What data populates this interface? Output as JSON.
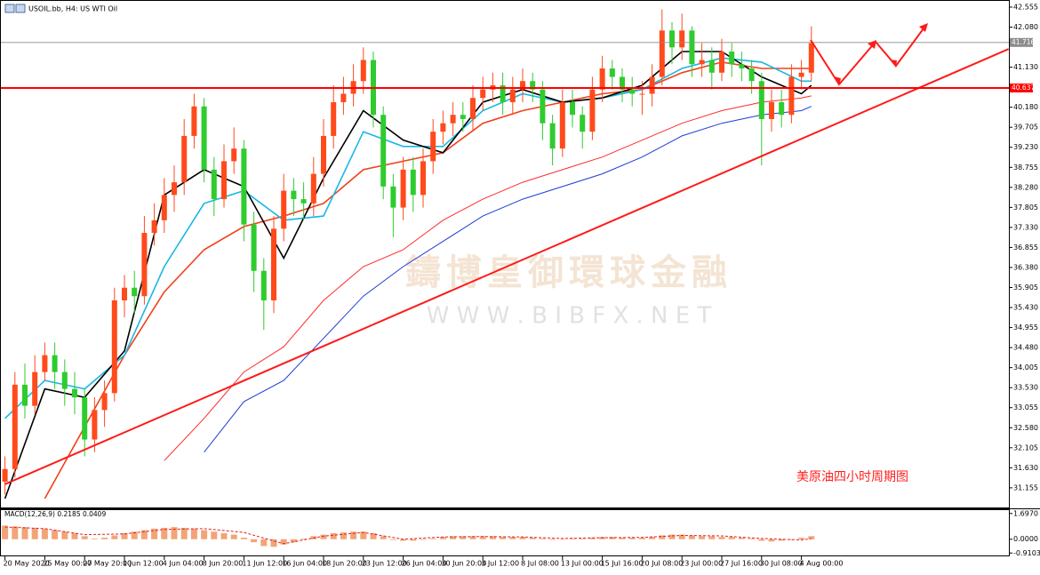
{
  "chart_data": [
    {
      "type": "candlestick",
      "title": "USOIL.bb, H4:  US WTI Oil",
      "annotation": "美原油四小时周期图",
      "watermark": "鑄博皇御環球金融",
      "watermark_url": "W W W . B I B F X . N E T",
      "categories": [
        "20 May 2020",
        null,
        null,
        null,
        "25 May 00:00",
        null,
        null,
        null,
        "27 May 20:00",
        null,
        null,
        null,
        "1 Jun 12:00",
        null,
        null,
        null,
        "4 Jun 04:00",
        null,
        null,
        null,
        "8 Jun 20:00",
        null,
        null,
        null,
        "11 Jun 12:00",
        null,
        null,
        null,
        "16 Jun 04:00",
        null,
        null,
        null,
        "18 Jun 20:00",
        null,
        null,
        null,
        "23 Jun 12:00",
        null,
        null,
        null,
        "26 Jun 04:00",
        null,
        null,
        null,
        "30 Jun 20:00",
        null,
        null,
        null,
        "3 Jul 12:00",
        null,
        null,
        null,
        "8 Jul 08:00",
        null,
        null,
        null,
        "13 Jul 00:00",
        null,
        null,
        null,
        "15 Jul 16:00",
        null,
        null,
        null,
        "20 Jul 08:00",
        null,
        null,
        null,
        "23 Jul 00:00",
        null,
        null,
        null,
        "27 Jul 16:00",
        null,
        null,
        null,
        "30 Jul 08:00",
        null,
        null,
        null,
        "4 Aug 00:00",
        null
      ],
      "open": [
        31.3,
        31.6,
        33.6,
        33.1,
        33.9,
        34.3,
        33.9,
        33.5,
        33.3,
        32.3,
        33.0,
        33.4,
        35.6,
        35.9,
        35.7,
        37.2,
        37.5,
        38.1,
        38.4,
        39.5,
        40.2,
        38.7,
        38.0,
        38.9,
        39.2,
        37.4,
        36.3,
        35.6,
        37.3,
        38.2,
        38.0,
        37.9,
        38.6,
        39.5,
        40.3,
        40.5,
        40.8,
        41.3,
        40.0,
        38.3,
        37.8,
        38.7,
        38.1,
        38.9,
        39.6,
        39.8,
        40.0,
        39.9,
        40.4,
        40.6,
        40.7,
        40.3,
        40.6,
        40.8,
        40.6,
        39.8,
        39.2,
        40.3,
        40.0,
        39.6,
        40.6,
        41.1,
        40.9,
        40.6,
        40.5,
        40.5,
        40.9,
        42.0,
        41.6,
        42.0,
        41.2,
        41.3,
        41.0,
        41.5,
        41.2,
        41.1,
        40.8,
        39.9,
        40.3,
        40.0,
        40.9,
        41.0
      ],
      "high": [
        31.9,
        33.9,
        34.1,
        34.3,
        34.6,
        34.6,
        34.2,
        33.9,
        33.5,
        33.3,
        33.7,
        35.9,
        36.2,
        36.3,
        37.6,
        37.9,
        38.5,
        38.8,
        39.9,
        40.5,
        40.4,
        39.0,
        39.3,
        39.7,
        39.4,
        37.7,
        36.6,
        37.6,
        38.6,
        38.5,
        38.4,
        39.0,
        39.9,
        40.7,
        40.9,
        41.2,
        41.6,
        41.5,
        40.2,
        38.6,
        39.0,
        39.0,
        39.2,
        39.9,
        40.1,
        40.3,
        40.3,
        40.7,
        40.9,
        41.0,
        41.0,
        40.9,
        41.1,
        41.0,
        40.8,
        40.0,
        40.6,
        40.6,
        40.2,
        40.9,
        41.4,
        41.3,
        41.1,
        40.9,
        40.8,
        41.2,
        42.5,
        42.2,
        42.4,
        42.1,
        41.7,
        41.6,
        41.8,
        41.7,
        41.5,
        41.3,
        41.0,
        40.6,
        40.6,
        41.2,
        41.3,
        42.1
      ],
      "low": [
        31.0,
        31.4,
        32.8,
        32.9,
        33.7,
        33.5,
        33.1,
        32.9,
        31.9,
        32.0,
        32.6,
        33.2,
        35.2,
        35.3,
        35.5,
        36.9,
        37.2,
        37.7,
        38.1,
        39.2,
        38.4,
        37.6,
        37.8,
        38.6,
        37.0,
        35.8,
        34.9,
        35.3,
        37.0,
        37.6,
        37.5,
        37.6,
        38.3,
        39.2,
        40.0,
        40.2,
        40.5,
        39.7,
        38.0,
        37.1,
        37.5,
        37.7,
        37.8,
        38.6,
        39.3,
        39.5,
        39.6,
        39.6,
        40.1,
        40.3,
        40.0,
        40.0,
        40.3,
        40.3,
        39.4,
        38.8,
        39.0,
        39.7,
        39.2,
        39.4,
        40.3,
        40.6,
        40.3,
        40.2,
        40.0,
        40.2,
        40.7,
        41.2,
        41.3,
        40.9,
        40.9,
        40.6,
        40.8,
        40.9,
        40.8,
        40.5,
        38.8,
        39.6,
        39.7,
        39.8,
        40.6,
        40.8
      ],
      "close": [
        31.6,
        33.6,
        33.1,
        33.9,
        34.3,
        33.9,
        33.5,
        33.3,
        32.3,
        33.0,
        33.4,
        35.6,
        35.9,
        35.7,
        37.2,
        37.5,
        38.1,
        38.4,
        39.5,
        40.2,
        38.7,
        38.0,
        38.9,
        39.2,
        37.4,
        36.3,
        35.6,
        37.3,
        38.2,
        38.0,
        37.9,
        38.6,
        39.5,
        40.3,
        40.5,
        40.8,
        41.3,
        40.0,
        38.3,
        37.8,
        38.7,
        38.1,
        38.9,
        39.6,
        39.8,
        40.0,
        39.9,
        40.4,
        40.6,
        40.7,
        40.3,
        40.6,
        40.8,
        40.6,
        39.8,
        39.2,
        40.3,
        40.0,
        39.6,
        40.6,
        41.1,
        40.9,
        40.6,
        40.5,
        40.5,
        40.9,
        42.0,
        41.6,
        42.0,
        41.2,
        41.3,
        41.0,
        41.5,
        41.2,
        41.1,
        40.8,
        39.9,
        40.3,
        40.0,
        40.9,
        41.0,
        41.7
      ],
      "up_color": "#ff4a1c",
      "down_color": "#2ecc2e",
      "line_x": [
        0,
        4,
        8,
        12,
        16,
        20,
        24,
        28,
        32,
        36,
        40,
        44,
        48,
        52,
        56,
        60,
        64,
        68,
        72,
        76,
        80,
        81
      ],
      "lines": [
        {
          "color": "#1f3bd6",
          "width": 1,
          "values": [
            null,
            null,
            null,
            null,
            null,
            32.0,
            33.2,
            33.7,
            34.7,
            35.7,
            36.4,
            37.0,
            37.6,
            38.0,
            38.3,
            38.6,
            39.0,
            39.5,
            39.8,
            40.0,
            40.1,
            40.2
          ]
        },
        {
          "color": "#ff2a2a",
          "width": 1,
          "values": [
            null,
            null,
            null,
            null,
            31.8,
            32.8,
            33.9,
            34.5,
            35.6,
            36.4,
            36.8,
            37.5,
            38.0,
            38.4,
            38.7,
            39.0,
            39.4,
            39.8,
            40.1,
            40.3,
            40.4,
            40.45
          ]
        },
        {
          "color": "#f0401a",
          "width": 1.6,
          "values": [
            null,
            30.9,
            32.6,
            34.3,
            35.8,
            36.8,
            37.35,
            37.6,
            37.9,
            38.7,
            38.9,
            39.1,
            39.8,
            40.1,
            40.3,
            40.5,
            40.6,
            41.0,
            41.25,
            41.1,
            41.1,
            41.1
          ]
        },
        {
          "color": "#19b7e6",
          "width": 1.6,
          "values": [
            32.8,
            33.7,
            33.5,
            34.3,
            36.4,
            37.9,
            38.2,
            37.5,
            37.6,
            39.6,
            39.25,
            39.25,
            40.1,
            40.5,
            40.3,
            40.4,
            40.6,
            41.1,
            41.35,
            41.25,
            40.8,
            40.8
          ]
        },
        {
          "color": "#000000",
          "width": 1.6,
          "values": [
            30.9,
            33.5,
            33.3,
            34.4,
            38.1,
            38.7,
            38.3,
            36.6,
            38.5,
            40.1,
            39.4,
            39.1,
            40.3,
            40.6,
            40.3,
            40.4,
            40.7,
            41.5,
            41.5,
            40.9,
            40.5,
            40.7
          ]
        }
      ],
      "trendline": {
        "color": "#ff1a1a",
        "x": [
          0,
          100.8
        ],
        "values": [
          31.24,
          41.56
        ]
      },
      "price_lines": [
        {
          "value": 41.716,
          "color": "#8c8c8c"
        },
        {
          "value": 40.637,
          "color": "#ff0000"
        }
      ],
      "ylim": [
        30.71,
        42.66
      ],
      "yticks": [
        42.555,
        {
          "value": 42.08,
          "label": "42.080"
        },
        {
          "value": 41.13,
          "label": "41.130"
        },
        {
          "value": 40.18,
          "label": "40.180"
        },
        39.705,
        {
          "value": 39.23,
          "label": "39.230"
        },
        38.755,
        {
          "value": 38.28,
          "label": "38.280"
        },
        37.805,
        {
          "value": 37.33,
          "label": "37.330"
        },
        36.855,
        {
          "value": 36.38,
          "label": "36.380"
        },
        35.905,
        {
          "value": 35.43,
          "label": "35.430"
        },
        34.955,
        {
          "value": 34.48,
          "label": "34.480"
        },
        34.005,
        {
          "value": 33.53,
          "label": "33.530"
        },
        33.055,
        {
          "value": 32.58,
          "label": "32.580"
        },
        32.105,
        {
          "value": 31.63,
          "label": "31.630"
        },
        31.155
      ]
    },
    {
      "type": "bar",
      "title": "MACD(12,26,9) 0.2185 0.0409",
      "color": "#f2a477",
      "values": [
        0.9,
        0.85,
        0.8,
        0.75,
        0.7,
        0.6,
        0.5,
        0.4,
        0.2,
        0.05,
        0.1,
        0.25,
        0.4,
        0.5,
        0.6,
        0.7,
        0.75,
        0.8,
        0.75,
        0.7,
        0.6,
        0.5,
        0.4,
        0.3,
        0.1,
        -0.2,
        -0.45,
        -0.5,
        -0.35,
        -0.2,
        0.05,
        0.2,
        0.3,
        0.4,
        0.45,
        0.5,
        0.5,
        0.4,
        0.2,
        -0.05,
        -0.1,
        -0.1,
        -0.05,
        0.05,
        0.15,
        0.2,
        0.2,
        0.2,
        0.2,
        0.2,
        0.15,
        0.15,
        0.15,
        0.1,
        0.05,
        -0.05,
        0.0,
        0.05,
        0.05,
        0.1,
        0.15,
        0.15,
        0.1,
        0.1,
        0.1,
        0.15,
        0.25,
        0.3,
        0.3,
        0.25,
        0.2,
        0.2,
        0.15,
        0.15,
        0.1,
        0.05,
        -0.1,
        -0.15,
        -0.1,
        -0.05,
        0.1,
        0.2
      ],
      "signal": {
        "color": "#e02020",
        "values": [
          0.8,
          0.7,
          0.3,
          0.35,
          0.65,
          0.7,
          0.45,
          -0.3,
          0.2,
          0.45,
          0.0,
          0.15,
          0.18,
          0.15,
          0.05,
          0.1,
          0.12,
          0.25,
          0.22,
          0.05,
          -0.05,
          0.04
        ]
      },
      "ylim": [
        -1.13,
        1.92
      ],
      "yticks": [
        {
          "value": 1.697,
          "label": "1.6970"
        },
        {
          "value": 0,
          "label": "0.0000"
        },
        {
          "value": -0.9103,
          "label": "-0.9103"
        }
      ]
    }
  ]
}
